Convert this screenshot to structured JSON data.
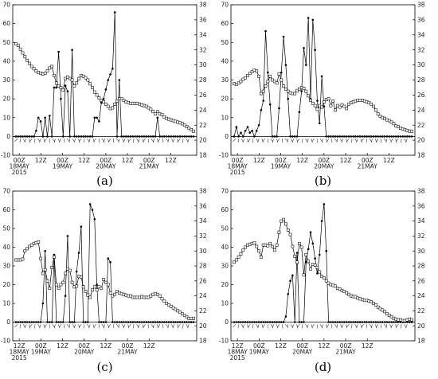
{
  "chart_data": [
    {
      "panel": "(a)",
      "type": "line",
      "x_ticks": [
        "00Z\n18MAY\n2015",
        "12Z",
        "00Z\n19MAY",
        "12Z",
        "00Z\n20MAY",
        "12Z",
        "00Z\n21MAY",
        "12Z"
      ],
      "y_left": {
        "ylim": [
          -10,
          70
        ],
        "ticks": [
          -10,
          0,
          10,
          20,
          30,
          40,
          50,
          60,
          70
        ]
      },
      "y_right": {
        "ylim": [
          18,
          38
        ],
        "ticks": [
          18,
          20,
          22,
          24,
          26,
          28,
          30,
          32,
          34,
          36,
          38
        ]
      },
      "series": [
        {
          "axis": "left",
          "marker": "filled-circle",
          "values": [
            0,
            0,
            0,
            0,
            0,
            0,
            0,
            0,
            0,
            3,
            10,
            8,
            0,
            10,
            0,
            11,
            0,
            26,
            26,
            45,
            20,
            0,
            27,
            24,
            0,
            46,
            0,
            0,
            0,
            0,
            0,
            0,
            0,
            0,
            0,
            10,
            10,
            8,
            18,
            20,
            25,
            30,
            33,
            36,
            66,
            0,
            30,
            0,
            0,
            0,
            0,
            0,
            0,
            0,
            0,
            0,
            0,
            0,
            0,
            0,
            0,
            0,
            0,
            10,
            0,
            0,
            0,
            0,
            0,
            0,
            0,
            0,
            0,
            0,
            0,
            0,
            0,
            0,
            0,
            0
          ]
        },
        {
          "axis": "right",
          "marker": "open-square",
          "values": [
            32.8,
            32.6,
            32.1,
            31.6,
            31.1,
            30.6,
            30.2,
            29.8,
            29.5,
            29.2,
            29.0,
            28.9,
            28.8,
            28.9,
            29.2,
            29.6,
            29.8,
            28.6,
            27.6,
            27.2,
            27.0,
            26.7,
            28.2,
            28.4,
            28.2,
            28.0,
            27.2,
            27.6,
            28.2,
            28.6,
            28.5,
            28.3,
            28.0,
            27.5,
            27.0,
            26.4,
            26.0,
            25.6,
            25.3,
            25.1,
            24.8,
            24.5,
            24.2,
            24.3,
            24.8,
            25.2,
            25.5,
            25.5,
            25.3,
            25.1,
            25.0,
            24.9,
            24.9,
            24.9,
            24.9,
            24.8,
            24.7,
            24.6,
            24.5,
            24.3,
            24.1,
            23.8,
            23.5,
            23.8,
            23.5,
            23.4,
            23.1,
            22.9,
            22.8,
            22.7,
            22.6,
            22.5,
            22.4,
            22.3,
            22.2,
            22.0,
            21.8,
            21.6,
            21.4,
            21.2
          ]
        }
      ]
    },
    {
      "panel": "(b)",
      "type": "line",
      "x_ticks": [
        "00Z\n18MAY\n2015",
        "12Z",
        "00Z\n19MAY",
        "12Z",
        "00Z\n20MAY",
        "12Z",
        "00Z\n21MAY",
        "12Z"
      ],
      "y_left": {
        "ylim": [
          -10,
          70
        ],
        "ticks": [
          -10,
          0,
          10,
          20,
          30,
          40,
          50,
          60,
          70
        ]
      },
      "y_right": {
        "ylim": [
          18,
          38
        ],
        "ticks": [
          18,
          20,
          22,
          24,
          26,
          28,
          30,
          32,
          34,
          36,
          38
        ]
      },
      "series": [
        {
          "axis": "left",
          "marker": "filled-circle",
          "values": [
            0,
            5,
            0,
            2,
            0,
            3,
            5,
            2,
            3,
            0,
            3,
            6,
            14,
            19,
            56,
            34,
            17,
            0,
            0,
            0,
            15,
            34,
            53,
            38,
            20,
            0,
            0,
            0,
            0,
            13,
            24,
            47,
            38,
            63,
            20,
            62,
            46,
            19,
            7,
            32,
            16,
            0,
            0,
            0,
            0,
            0,
            0,
            0,
            0,
            0,
            0,
            0,
            0,
            0,
            0,
            0,
            0,
            0,
            0,
            0,
            0,
            0,
            0,
            0,
            0,
            0,
            0,
            0,
            0,
            0,
            0,
            0,
            0,
            0,
            0,
            0,
            0,
            0,
            0,
            0
          ]
        },
        {
          "axis": "right",
          "marker": "open-square",
          "values": [
            27.5,
            27.4,
            27.6,
            27.8,
            28.1,
            28.3,
            28.6,
            28.9,
            29.1,
            29.3,
            29.2,
            28.5,
            26.2,
            26.5,
            27.2,
            27.8,
            28.5,
            28.0,
            27.8,
            27.6,
            28.8,
            28.0,
            27.2,
            26.8,
            26.5,
            26.3,
            26.2,
            26.2,
            26.6,
            26.8,
            27.0,
            26.9,
            26.5,
            25.9,
            25.3,
            24.9,
            24.6,
            24.1,
            24.6,
            24.4,
            25.1,
            25.4,
            25.5,
            24.6,
            25.2,
            24.0,
            24.6,
            24.4,
            24.7,
            24.5,
            24.2,
            24.8,
            25.0,
            25.1,
            25.2,
            25.3,
            25.3,
            25.3,
            25.2,
            25.1,
            25.0,
            24.8,
            24.5,
            24.0,
            23.5,
            23.2,
            23.0,
            22.9,
            22.7,
            22.6,
            22.4,
            22.2,
            21.9,
            21.8,
            21.6,
            21.5,
            21.4,
            21.3,
            21.2,
            21.2
          ]
        }
      ]
    },
    {
      "panel": "(c)",
      "type": "line",
      "x_ticks": [
        "12Z\n18MAY\n2015",
        "00Z\n19MAY",
        "12Z",
        "00Z\n20MAY",
        "12Z",
        "00Z\n21MAY",
        "12Z"
      ],
      "y_left": {
        "ylim": [
          -10,
          70
        ],
        "ticks": [
          -10,
          0,
          10,
          20,
          30,
          40,
          50,
          60,
          70
        ]
      },
      "y_right": {
        "ylim": [
          18,
          38
        ],
        "ticks": [
          18,
          20,
          22,
          24,
          26,
          28,
          30,
          32,
          34,
          36,
          38
        ]
      },
      "series": [
        {
          "axis": "left",
          "marker": "filled-circle",
          "values": [
            0,
            0,
            0,
            0,
            0,
            0,
            0,
            0,
            0,
            0,
            0,
            0,
            10,
            38,
            0,
            0,
            0,
            36,
            0,
            0,
            0,
            0,
            14,
            46,
            0,
            0,
            0,
            27,
            37,
            51,
            0,
            0,
            0,
            63,
            60,
            55,
            20,
            0,
            0,
            0,
            0,
            34,
            32,
            0,
            0,
            0,
            0,
            0,
            0,
            0,
            0,
            0,
            0,
            0,
            0,
            0,
            0,
            0,
            0,
            0,
            0,
            0,
            0,
            0,
            0,
            0,
            0,
            0,
            0,
            0,
            0,
            0,
            0,
            0,
            0,
            0,
            0,
            0,
            0,
            0
          ]
        },
        {
          "axis": "right",
          "marker": "open-square",
          "values": [
            28.8,
            28.8,
            28.8,
            28.9,
            30.0,
            30.3,
            30.6,
            30.8,
            31.0,
            31.1,
            31.2,
            29.0,
            27.0,
            27.5,
            26.0,
            25.0,
            27.8,
            29.2,
            25.5,
            25.0,
            25.5,
            25.8,
            27.0,
            27.6,
            27.4,
            25.8,
            25.2,
            25.3,
            26.6,
            26.5,
            25.2,
            24.6,
            24.1,
            23.8,
            24.8,
            25.2,
            24.8,
            25.2,
            25.0,
            26.2,
            25.8,
            25.5,
            24.4,
            24.0,
            24.2,
            24.6,
            24.4,
            24.3,
            24.2,
            24.1,
            24.0,
            24.0,
            23.8,
            23.8,
            23.8,
            23.8,
            23.9,
            23.8,
            23.8,
            23.8,
            24.0,
            24.2,
            24.3,
            24.2,
            24.0,
            23.6,
            23.3,
            23.0,
            22.8,
            22.6,
            22.4,
            22.2,
            22.0,
            21.8,
            21.6,
            21.4,
            21.2,
            21.0,
            21.0,
            21.0
          ]
        }
      ]
    },
    {
      "panel": "(d)",
      "type": "line",
      "x_ticks": [
        "12Z\n18MAY\n2015",
        "00Z\n19MAY",
        "12Z",
        "00Z\n20MAY",
        "12Z",
        "00Z\n21MAY",
        "12Z"
      ],
      "y_left": {
        "ylim": [
          -10,
          70
        ],
        "ticks": [
          -10,
          0,
          10,
          20,
          30,
          40,
          50,
          60,
          70
        ]
      },
      "y_right": {
        "ylim": [
          18,
          38
        ],
        "ticks": [
          18,
          20,
          22,
          24,
          26,
          28,
          30,
          32,
          34,
          36,
          38
        ]
      },
      "series": [
        {
          "axis": "left",
          "marker": "filled-circle",
          "values": [
            0,
            0,
            0,
            0,
            0,
            0,
            0,
            0,
            0,
            0,
            0,
            0,
            0,
            0,
            0,
            0,
            0,
            0,
            0,
            0,
            0,
            0,
            0,
            3,
            15,
            22,
            25,
            0,
            37,
            0,
            0,
            0,
            32,
            39,
            48,
            42,
            34,
            26,
            36,
            54,
            63,
            38,
            0,
            0,
            0,
            0,
            0,
            0,
            0,
            0,
            0,
            0,
            0,
            0,
            0,
            0,
            0,
            0,
            0,
            0,
            0,
            0,
            0,
            0,
            0,
            0,
            0,
            0,
            0,
            0,
            0,
            0,
            0,
            0,
            0,
            0,
            0,
            0,
            0,
            0
          ]
        },
        {
          "axis": "right",
          "marker": "open-square",
          "values": [
            28.5,
            28.8,
            29.2,
            29.6,
            30.1,
            30.5,
            30.8,
            30.9,
            31.0,
            31.1,
            30.6,
            30.0,
            29.2,
            30.8,
            30.8,
            30.7,
            31.0,
            30.6,
            30.1,
            30.8,
            32.5,
            34.0,
            34.2,
            33.6,
            32.8,
            32.2,
            30.6,
            29.3,
            28.5,
            31.0,
            30.5,
            26.8,
            29.5,
            28.6,
            27.6,
            28.2,
            28.1,
            27.8,
            27.2,
            26.6,
            26.4,
            26.0,
            25.7,
            25.5,
            25.4,
            25.3,
            25.0,
            24.9,
            24.7,
            24.6,
            24.4,
            24.2,
            24.0,
            23.9,
            23.9,
            23.7,
            23.6,
            23.5,
            23.4,
            23.4,
            23.3,
            23.2,
            23.0,
            22.8,
            22.5,
            22.3,
            22.1,
            21.9,
            21.6,
            21.4,
            21.2,
            21.0,
            20.9,
            20.8,
            20.8,
            20.7,
            20.7,
            20.8,
            20.9,
            20.8
          ]
        }
      ]
    }
  ]
}
